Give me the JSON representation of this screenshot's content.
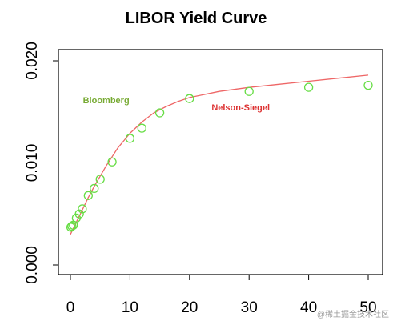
{
  "chart_data": {
    "type": "scatter",
    "title": "LIBOR Yield Curve",
    "xlabel": "",
    "ylabel": "",
    "xlim": [
      0,
      50
    ],
    "ylim": [
      0,
      0.02
    ],
    "x_ticks": [
      0,
      10,
      20,
      30,
      40,
      50
    ],
    "x_tick_labels": [
      "0",
      "10",
      "20",
      "30",
      "40",
      "50"
    ],
    "y_ticks": [
      0,
      0.01,
      0.02
    ],
    "y_tick_labels": [
      "0.000",
      "0.010",
      "0.020"
    ],
    "grid": false,
    "series": [
      {
        "name": "Bloomberg",
        "kind": "points",
        "marker": "open-circle",
        "color": "#66dd44",
        "label_color": "#77aa33",
        "label_pos": [
          2.1,
          0.01585
        ],
        "x": [
          0.08,
          0.25,
          0.5,
          1,
          1.5,
          2,
          3,
          4,
          5,
          7,
          10,
          12,
          15,
          20,
          30,
          40,
          50
        ],
        "y": [
          0.0037,
          0.0038,
          0.0039,
          0.0046,
          0.005,
          0.0055,
          0.0068,
          0.0075,
          0.0084,
          0.0101,
          0.0124,
          0.0134,
          0.0149,
          0.0163,
          0.017,
          0.0174,
          0.0176
        ]
      },
      {
        "name": "Nelson-Siegel",
        "kind": "line",
        "color": "#ee6666",
        "label_color": "#dd3333",
        "label_pos": [
          23.7,
          0.01515
        ],
        "x": [
          0,
          1,
          2,
          3,
          4,
          5,
          6,
          7,
          8,
          9,
          10,
          12,
          14,
          16,
          18,
          20,
          25,
          30,
          35,
          40,
          45,
          50
        ],
        "y": [
          0.003,
          0.0042,
          0.0054,
          0.0066,
          0.0077,
          0.0087,
          0.0097,
          0.0106,
          0.0115,
          0.0122,
          0.0129,
          0.014,
          0.0149,
          0.0155,
          0.016,
          0.0164,
          0.017,
          0.0174,
          0.0177,
          0.018,
          0.0183,
          0.0186
        ]
      }
    ]
  },
  "watermark": "@稀土掘金技术社区"
}
